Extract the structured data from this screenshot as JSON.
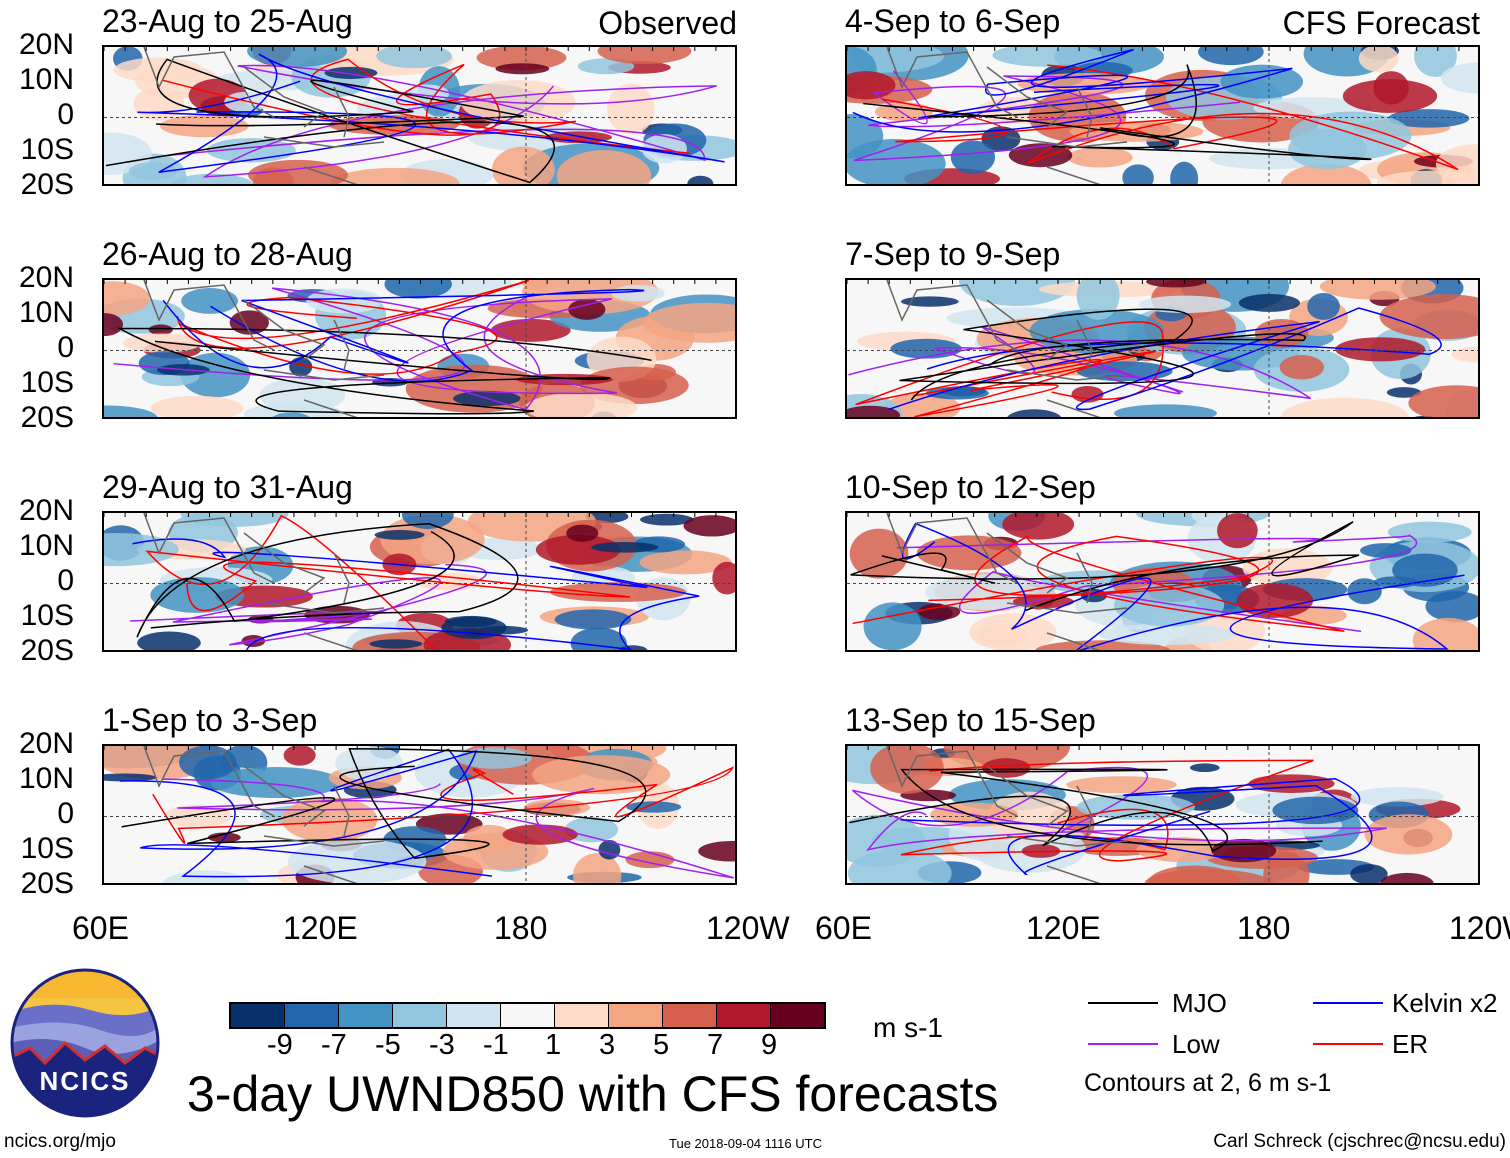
{
  "panels_left": [
    {
      "title": "23-Aug to 25-Aug",
      "label": "Observed"
    },
    {
      "title": "26-Aug to 28-Aug"
    },
    {
      "title": "29-Aug to 31-Aug"
    },
    {
      "title": "1-Sep to 3-Sep"
    }
  ],
  "panels_right": [
    {
      "title": "4-Sep to 6-Sep",
      "label": "CFS Forecast"
    },
    {
      "title": "7-Sep to 9-Sep"
    },
    {
      "title": "10-Sep to 12-Sep"
    },
    {
      "title": "13-Sep to 15-Sep"
    }
  ],
  "lat_labels": [
    "20N",
    "10N",
    "0",
    "10S",
    "20S"
  ],
  "lon_labels": [
    "60E",
    "120E",
    "180",
    "120W"
  ],
  "colorbar": {
    "colors": [
      "#08306b",
      "#2166ac",
      "#4393c3",
      "#92c5de",
      "#d1e5f0",
      "#f7f7f7",
      "#fddbc7",
      "#f4a582",
      "#d6604d",
      "#b2182b",
      "#67001f"
    ],
    "labels": [
      "-9",
      "-7",
      "-5",
      "-3",
      "-1",
      "1",
      "3",
      "5",
      "7",
      "9"
    ],
    "units": "m s-1"
  },
  "legend": {
    "items": [
      {
        "label": "MJO",
        "color": "#000000"
      },
      {
        "label": "Kelvin x2",
        "color": "#0000ff"
      },
      {
        "label": "Low",
        "color": "#a020f0"
      },
      {
        "label": "ER",
        "color": "#ff0000"
      }
    ],
    "note": "Contours at 2, 6 m s-1"
  },
  "title": "3-day UWND850 with CFS forecasts",
  "logo_text": "NCICS",
  "footer": {
    "url": "ncics.org/mjo",
    "timestamp": "Tue 2018-09-04 1116 UTC",
    "credit": "Carl Schreck (cjschrec@ncsu.edu)"
  }
}
